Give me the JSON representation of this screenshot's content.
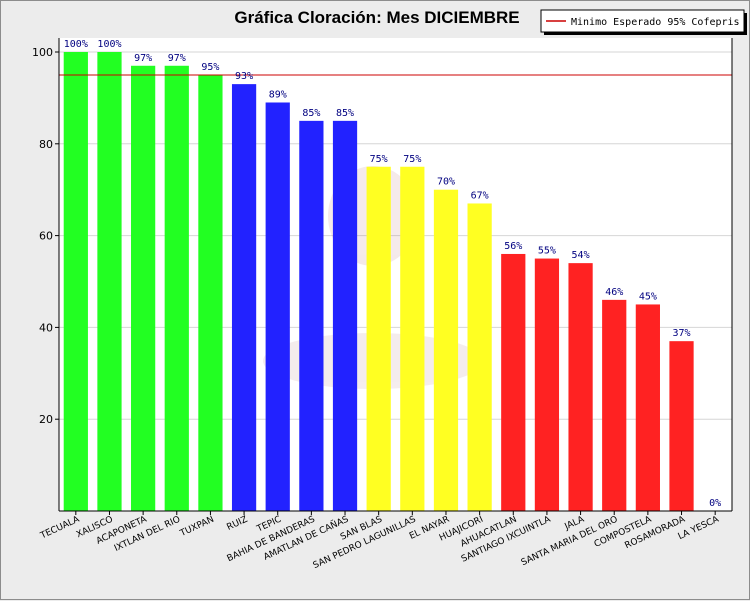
{
  "chart_data": {
    "type": "bar",
    "title": "Gráfica Cloración: Mes DICIEMBRE",
    "xlabel": "",
    "ylabel": "",
    "ylim": [
      0,
      100
    ],
    "yticks": [
      20,
      40,
      60,
      80,
      100
    ],
    "grid": true,
    "categories": [
      "TECUALA",
      "XALISCO",
      "ACAPONETA",
      "IXTLAN DEL RIO",
      "TUXPAN",
      "RUIZ",
      "TEPIC",
      "BAHIA DE BANDERAS",
      "AMATLAN DE CAÑAS",
      "SAN BLAS",
      "SAN PEDRO LAGUNILLAS",
      "EL NAYAR",
      "HUAJICORI",
      "AHUACATLAN",
      "SANTIAGO IXCUINTLA",
      "JALA",
      "SANTA MARIA DEL ORO",
      "COMPOSTELA",
      "ROSAMORADA",
      "LA YESCA"
    ],
    "values": [
      100,
      100,
      97,
      97,
      95,
      93,
      89,
      85,
      85,
      75,
      75,
      70,
      67,
      56,
      55,
      54,
      46,
      45,
      37,
      0
    ],
    "value_labels": [
      "100%",
      "100%",
      "97%",
      "97%",
      "95%",
      "93%",
      "89%",
      "85%",
      "85%",
      "75%",
      "75%",
      "70%",
      "67%",
      "56%",
      "55%",
      "54%",
      "46%",
      "45%",
      "37%",
      "0%"
    ],
    "bar_colors": [
      "#22ff22",
      "#22ff22",
      "#22ff22",
      "#22ff22",
      "#22ff22",
      "#2222ff",
      "#2222ff",
      "#2222ff",
      "#2222ff",
      "#ffff22",
      "#ffff22",
      "#ffff22",
      "#ffff22",
      "#ff2222",
      "#ff2222",
      "#ff2222",
      "#ff2222",
      "#ff2222",
      "#ff2222",
      "#ff2222"
    ],
    "reference_line": {
      "value": 95,
      "label": "Minimo Esperado 95% Cofepris",
      "color": "#cc0000"
    },
    "legend": {
      "position": "top-right",
      "entries": [
        "Minimo Esperado 95% Cofepris"
      ]
    }
  }
}
